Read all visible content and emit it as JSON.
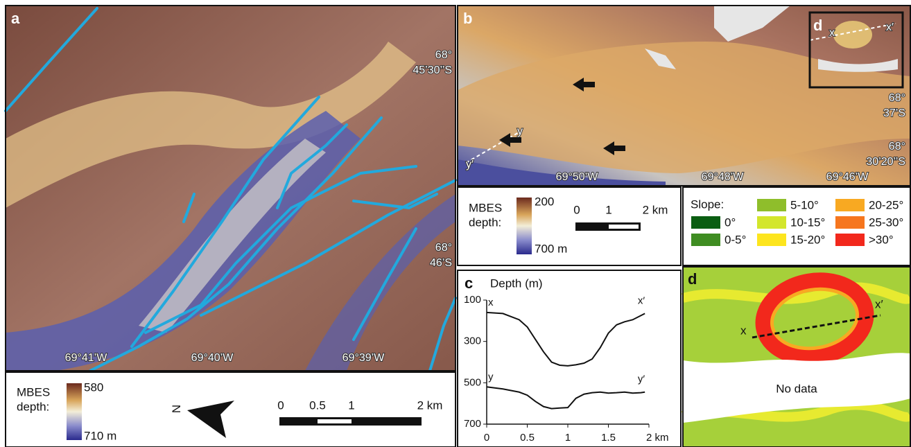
{
  "panel_a": {
    "label": "a",
    "lat_labels": [
      "68°",
      "45’30’’S",
      "68°",
      "46’S"
    ],
    "lon_labels": [
      "69°41’W",
      "69°40’W",
      "69°39’W"
    ],
    "legend": {
      "title_1": "MBES",
      "title_2": "depth:",
      "top": "580",
      "bottom": "710 m"
    },
    "north": "N",
    "scale": [
      "0",
      "0.5",
      "1",
      "2 km"
    ]
  },
  "panel_b": {
    "label": "b",
    "inset_label": "d",
    "profile_labels": [
      "x",
      "x′",
      "y",
      "y′"
    ],
    "lat_labels": [
      "68°",
      "37’S",
      "68°",
      "30’20’’S"
    ],
    "lon_labels": [
      "69°50’W",
      "69°48’W",
      "69°46’W"
    ],
    "legend": {
      "title_1": "MBES",
      "title_2": "depth:",
      "top": "200",
      "bottom": "700 m"
    },
    "scale": [
      "0",
      "1",
      "2 km"
    ]
  },
  "panel_c": {
    "label": "c",
    "chart_data": {
      "type": "line",
      "ylabel": "Depth (m)",
      "x": [
        0,
        0.2,
        0.4,
        0.5,
        0.6,
        0.7,
        0.8,
        0.9,
        1.0,
        1.1,
        1.2,
        1.3,
        1.4,
        1.5,
        1.6,
        1.7,
        1.8,
        1.9,
        1.95
      ],
      "series": [
        {
          "labels": [
            "x",
            "x′"
          ],
          "color": "#111111",
          "values": [
            160,
            165,
            195,
            230,
            290,
            350,
            400,
            415,
            418,
            413,
            405,
            385,
            330,
            260,
            220,
            205,
            195,
            175,
            165
          ]
        },
        {
          "labels": [
            "y",
            "y′"
          ],
          "color": "#111111",
          "values": [
            520,
            530,
            545,
            560,
            590,
            615,
            625,
            622,
            620,
            575,
            555,
            548,
            545,
            550,
            548,
            545,
            550,
            548,
            545
          ]
        }
      ],
      "xlim": [
        0,
        2
      ],
      "xticks": [
        0,
        0.5,
        1,
        1.5,
        {
          "value": 2,
          "label": "2 km"
        }
      ],
      "ylim": [
        100,
        700
      ],
      "yticks": [
        100,
        300,
        500,
        700
      ],
      "y_inverted": true
    }
  },
  "slope_legend": {
    "title": "Slope:",
    "classes": [
      {
        "label": "0°",
        "color": "#0b5e12"
      },
      {
        "label": "0-5°",
        "color": "#3f8d22"
      },
      {
        "label": "5-10°",
        "color": "#8fbe2b"
      },
      {
        "label": "10-15°",
        "color": "#d3e62c"
      },
      {
        "label": "15-20°",
        "color": "#fde51e"
      },
      {
        "label": "20-25°",
        "color": "#f8a922"
      },
      {
        "label": "25-30°",
        "color": "#f6761e"
      },
      {
        "label": ">30°",
        "color": "#f2281c"
      }
    ]
  },
  "panel_d": {
    "label": "d",
    "profile_labels": [
      "x",
      "x′"
    ],
    "no_data": "No data"
  }
}
